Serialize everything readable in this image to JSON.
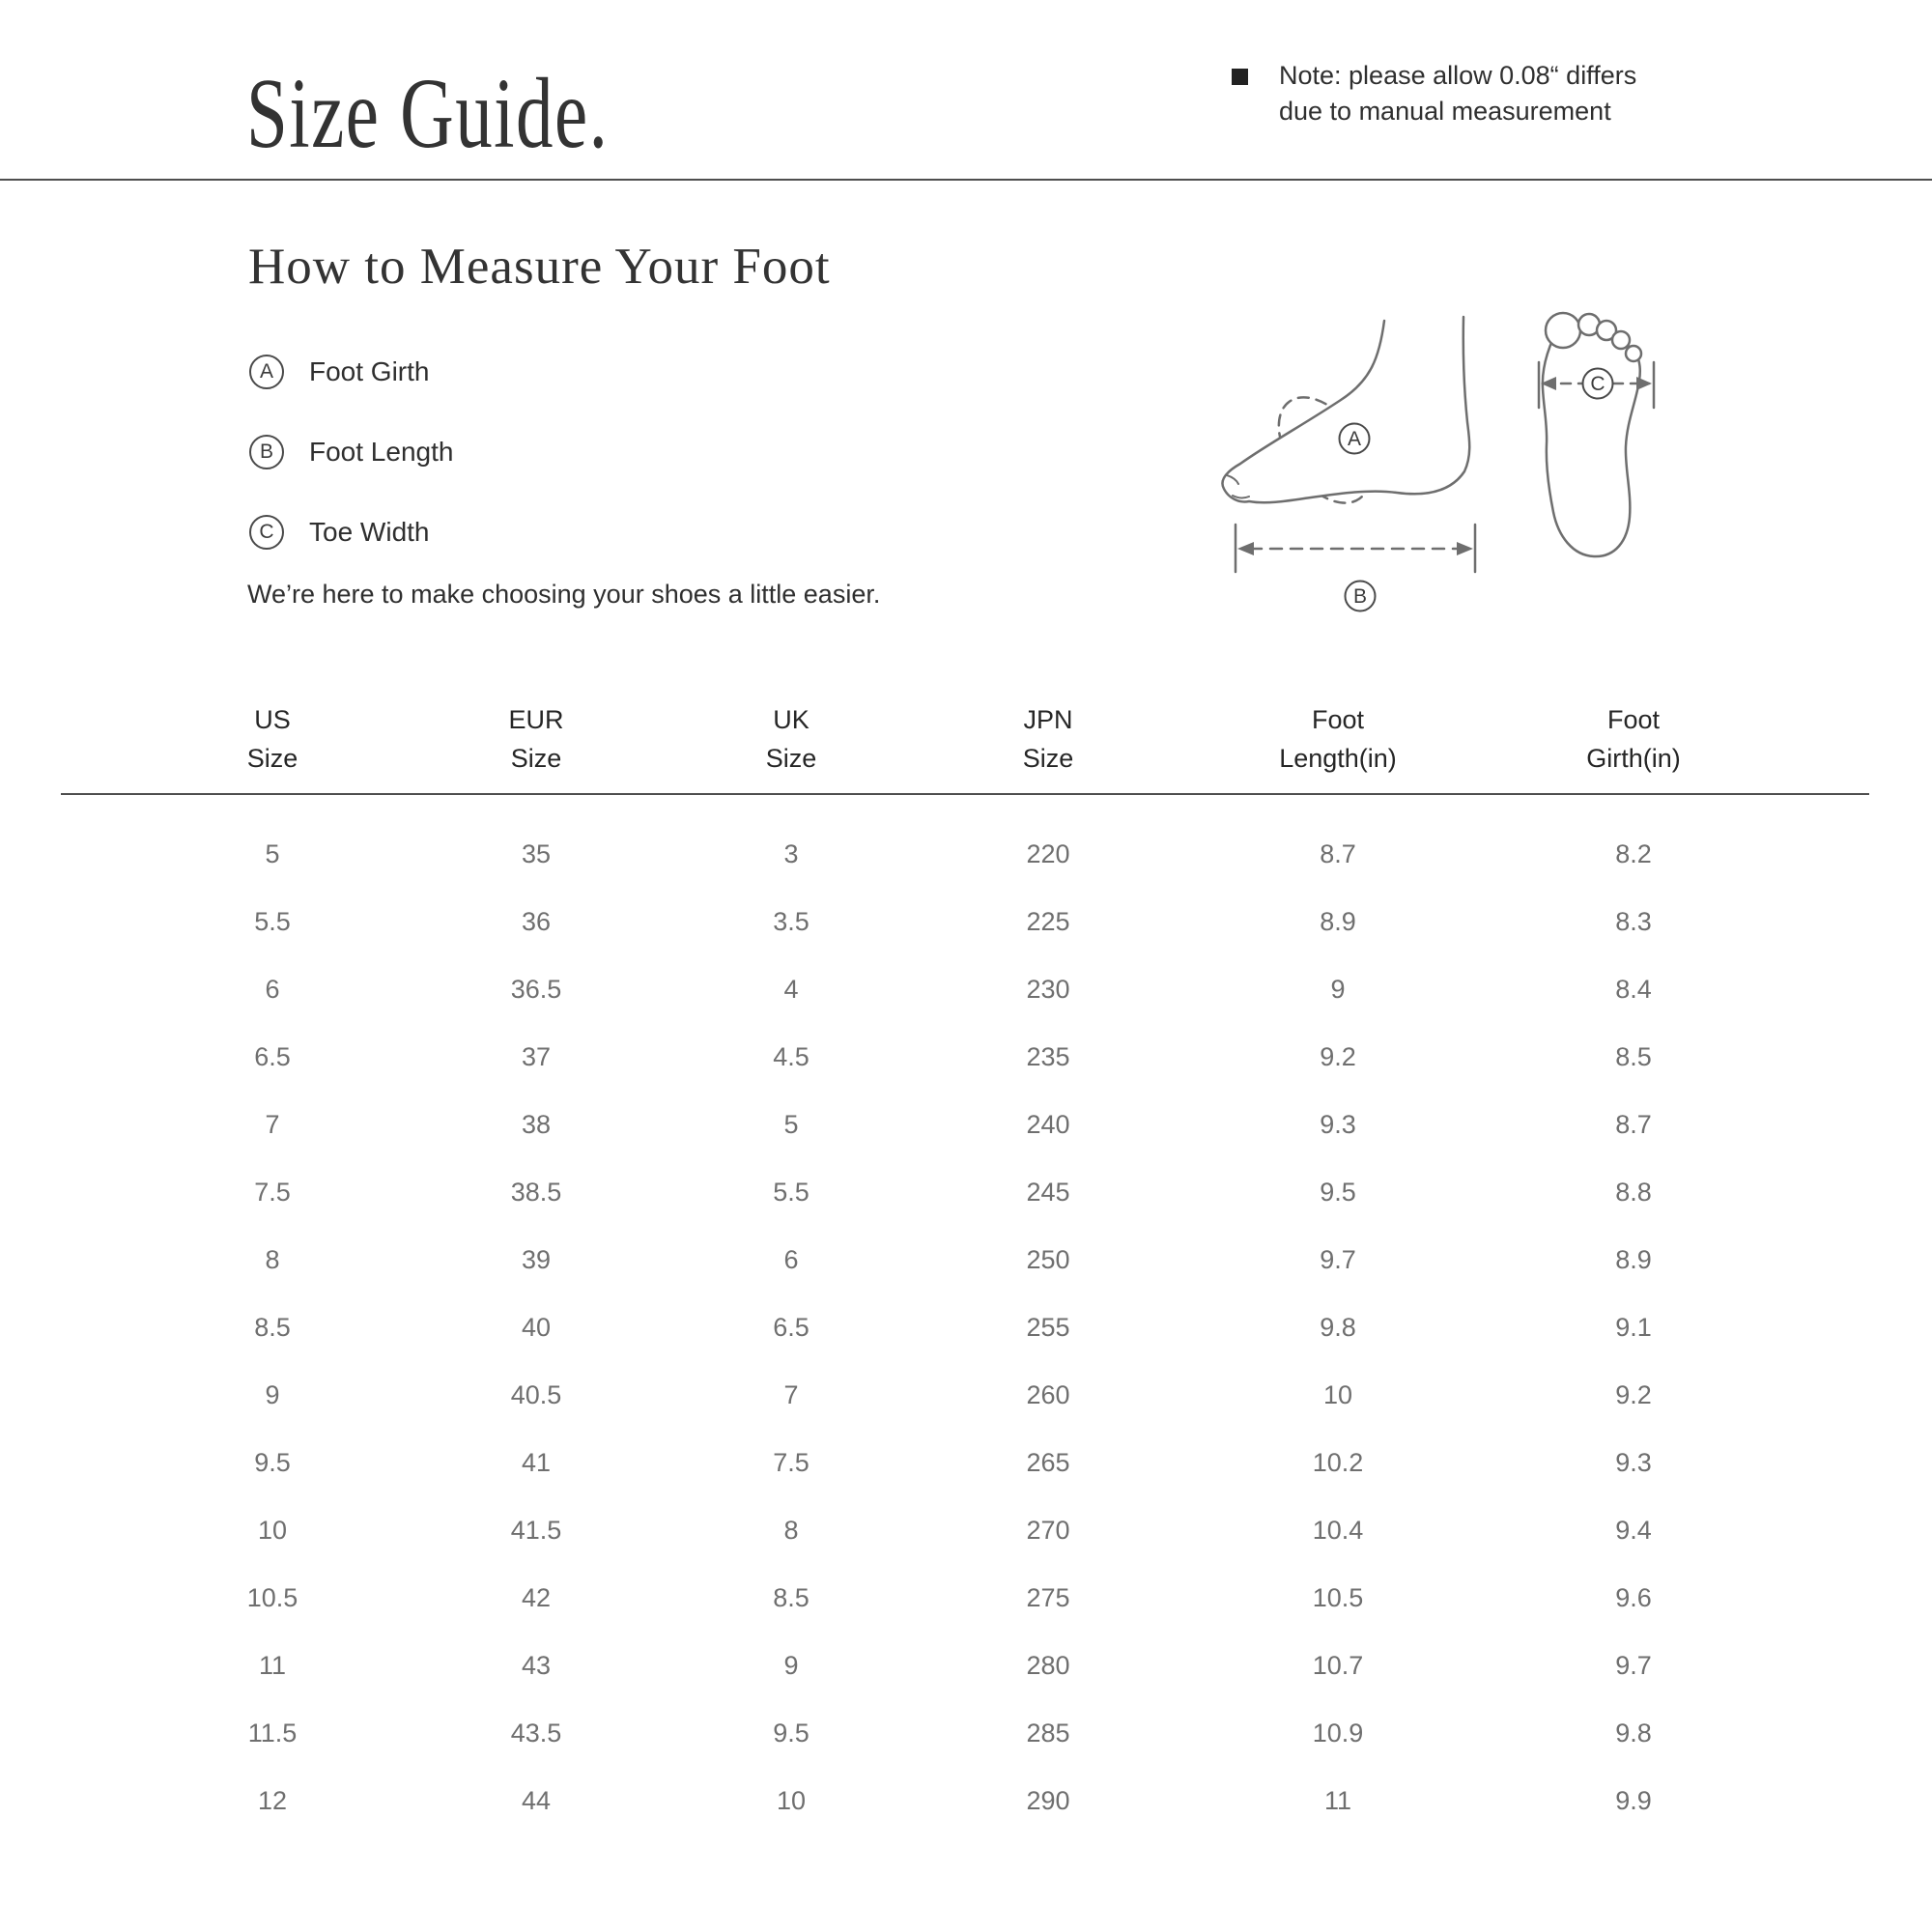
{
  "header": {
    "title": "Size Guide.",
    "note_line1": "Note: please allow 0.08“ differs",
    "note_line2": "due to manual measurement"
  },
  "measure": {
    "heading": "How to Measure Your Foot",
    "items": [
      {
        "key": "A",
        "label": "Foot Girth"
      },
      {
        "key": "B",
        "label": "Foot Length"
      },
      {
        "key": "C",
        "label": "Toe Width"
      }
    ],
    "description": "We’re here to make choosing your shoes a little easier.",
    "diagram": {
      "a": "A",
      "b": "B",
      "c": "C"
    }
  },
  "table": {
    "columns": [
      {
        "line1": "US",
        "line2": "Size"
      },
      {
        "line1": "EUR",
        "line2": "Size"
      },
      {
        "line1": "UK",
        "line2": "Size"
      },
      {
        "line1": "JPN",
        "line2": "Size"
      },
      {
        "line1": "Foot",
        "line2": "Length(in)"
      },
      {
        "line1": "Foot",
        "line2": "Girth(in)"
      }
    ],
    "rows": [
      [
        "5",
        "35",
        "3",
        "220",
        "8.7",
        "8.2"
      ],
      [
        "5.5",
        "36",
        "3.5",
        "225",
        "8.9",
        "8.3"
      ],
      [
        "6",
        "36.5",
        "4",
        "230",
        "9",
        "8.4"
      ],
      [
        "6.5",
        "37",
        "4.5",
        "235",
        "9.2",
        "8.5"
      ],
      [
        "7",
        "38",
        "5",
        "240",
        "9.3",
        "8.7"
      ],
      [
        "7.5",
        "38.5",
        "5.5",
        "245",
        "9.5",
        "8.8"
      ],
      [
        "8",
        "39",
        "6",
        "250",
        "9.7",
        "8.9"
      ],
      [
        "8.5",
        "40",
        "6.5",
        "255",
        "9.8",
        "9.1"
      ],
      [
        "9",
        "40.5",
        "7",
        "260",
        "10",
        "9.2"
      ],
      [
        "9.5",
        "41",
        "7.5",
        "265",
        "10.2",
        "9.3"
      ],
      [
        "10",
        "41.5",
        "8",
        "270",
        "10.4",
        "9.4"
      ],
      [
        "10.5",
        "42",
        "8.5",
        "275",
        "10.5",
        "9.6"
      ],
      [
        "11",
        "43",
        "9",
        "280",
        "10.7",
        "9.7"
      ],
      [
        "11.5",
        "43.5",
        "9.5",
        "285",
        "10.9",
        "9.8"
      ],
      [
        "12",
        "44",
        "10",
        "290",
        "11",
        "9.9"
      ]
    ]
  },
  "colors": {
    "text_dark": "#2f2f2f",
    "text_gray": "#6f6f6f",
    "divider": "#4e4e4e",
    "diagram_stroke": "#6e6e6e"
  }
}
